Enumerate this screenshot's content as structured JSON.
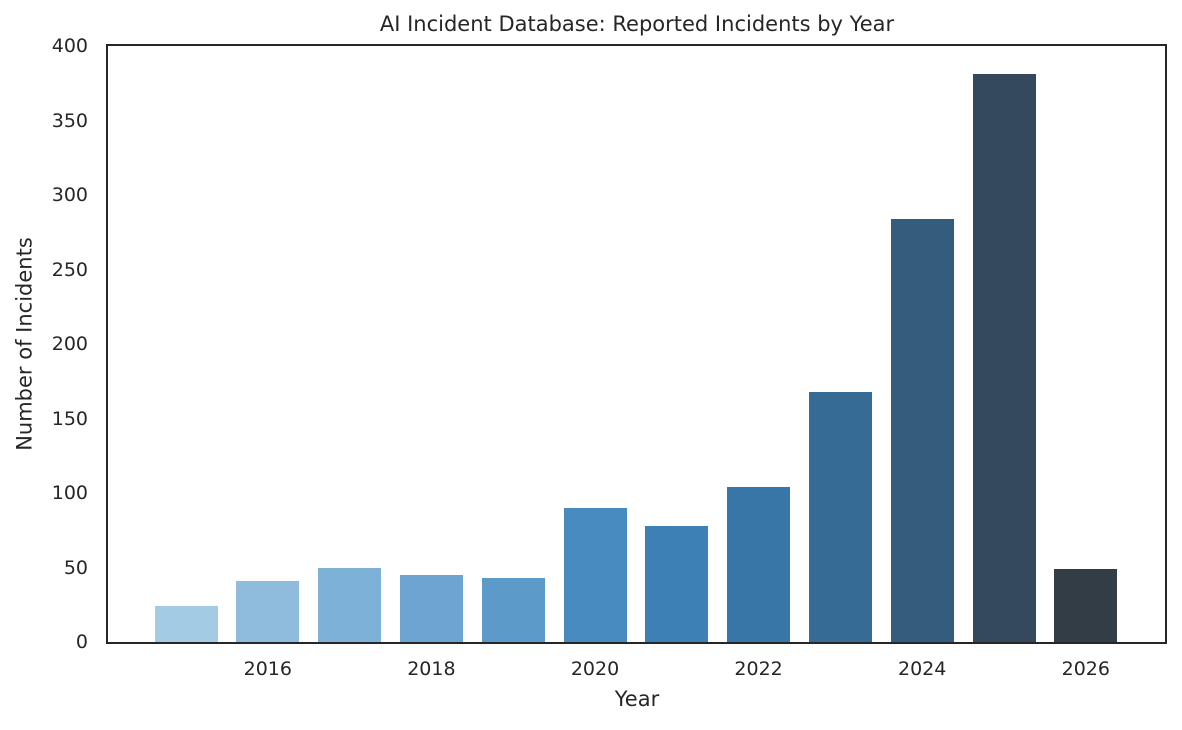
{
  "title": "AI Incident Database: Reported Incidents by Year",
  "colors": {
    "background": "#ffffff",
    "text": "#262626",
    "frame": "#262626"
  },
  "chart_data": {
    "type": "bar",
    "title": "AI Incident Database: Reported Incidents by Year",
    "xlabel": "Year",
    "ylabel": "Number of Incidents",
    "categories": [
      2015,
      2016,
      2017,
      2018,
      2019,
      2020,
      2021,
      2022,
      2023,
      2024,
      2025,
      2026
    ],
    "values": [
      24,
      41,
      50,
      45,
      43,
      90,
      78,
      104,
      168,
      284,
      381,
      49
    ],
    "bar_colors": [
      "#a3cbe4",
      "#8fbbdd",
      "#7db1d7",
      "#6ba5d0",
      "#5c9aca",
      "#478bc0",
      "#3d80b6",
      "#3876a8",
      "#356b94",
      "#345d7d",
      "#344a5c",
      "#323d46"
    ],
    "ylim": [
      0,
      400
    ],
    "yticks": [
      0,
      50,
      100,
      150,
      200,
      250,
      300,
      350,
      400
    ],
    "xticks": [
      2016,
      2018,
      2020,
      2022,
      2024,
      2026
    ],
    "grid": false,
    "legend": null,
    "plot_background": "#ffffff"
  }
}
